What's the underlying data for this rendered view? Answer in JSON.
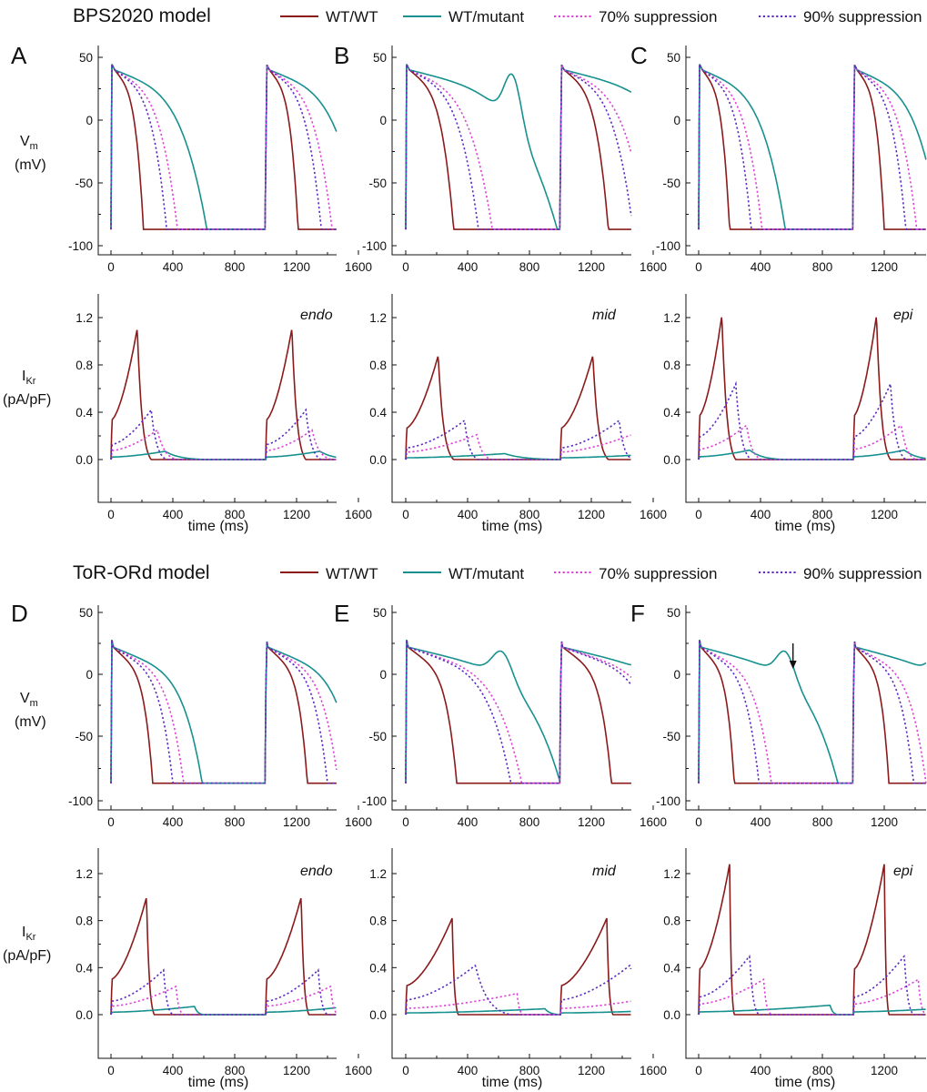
{
  "sections": [
    {
      "title": "BPS2020 model",
      "legend": [
        "WT/WT",
        "WT/mutant",
        "70% suppression",
        "90% suppression"
      ],
      "panels": [
        "A",
        "B",
        "C"
      ],
      "regions": [
        "endo",
        "mid",
        "epi"
      ]
    },
    {
      "title": "ToR-ORd model",
      "legend": [
        "WT/WT",
        "WT/mutant",
        "70% suppression",
        "90% suppression"
      ],
      "panels": [
        "D",
        "E",
        "F"
      ],
      "regions": [
        "endo",
        "mid",
        "epi"
      ]
    }
  ],
  "axes": {
    "vm_label_main": "V",
    "vm_label_sub": "m",
    "vm_unit": "(mV)",
    "ikr_label_main": "I",
    "ikr_label_sub": "Kr",
    "ikr_unit": "(pA/pF)",
    "xlabel": "time (ms)",
    "x_ticks": [
      "0",
      "400",
      "800",
      "1200",
      "1600"
    ],
    "vm_ticks": [
      "50",
      "0",
      "-50",
      "-100"
    ],
    "ikr_ticks": [
      "1.2",
      "0.8",
      "0.4",
      "0.0"
    ]
  },
  "colors": {
    "WT/WT": "#8b1a1a",
    "WT/mutant": "#17918f",
    "70% suppression": "#e040d8",
    "90% suppression": "#5a2ac2"
  },
  "chart_data": [
    {
      "panel": "A",
      "model": "BPS2020",
      "region": "endo",
      "type": "line",
      "xlim": [
        -40,
        1800
      ],
      "vm_ylim": [
        -100,
        55
      ],
      "ikr_ylim": [
        -0.08,
        1.38
      ],
      "apd_ms": [
        210,
        620,
        430,
        360
      ],
      "ikr": [
        {
          "series": "WT/WT",
          "peak": 1.11,
          "t_peak": 170,
          "end": 260
        },
        {
          "series": "WT/mutant",
          "peak": 0.07,
          "t_peak": 350,
          "end": 620
        },
        {
          "series": "70% suppression",
          "peak": 0.25,
          "t_peak": 300,
          "end": 430
        },
        {
          "series": "90% suppression",
          "peak": 0.42,
          "t_peak": 260,
          "end": 360
        }
      ]
    },
    {
      "panel": "B",
      "model": "BPS2020",
      "region": "mid",
      "type": "line",
      "xlim": [
        -40,
        1800
      ],
      "vm_ylim": [
        -100,
        55
      ],
      "ikr_ylim": [
        -0.08,
        1.38
      ],
      "apd_ms": [
        310,
        980,
        560,
        470
      ],
      "mutant_ead": true,
      "ikr": [
        {
          "series": "WT/WT",
          "peak": 0.88,
          "t_peak": 210,
          "end": 310
        },
        {
          "series": "WT/mutant",
          "peak": 0.05,
          "t_peak": 640,
          "end": 1000
        },
        {
          "series": "70% suppression",
          "peak": 0.21,
          "t_peak": 460,
          "end": 560
        },
        {
          "series": "90% suppression",
          "peak": 0.33,
          "t_peak": 380,
          "end": 470
        }
      ]
    },
    {
      "panel": "C",
      "model": "BPS2020",
      "region": "epi",
      "type": "line",
      "xlim": [
        -40,
        1800
      ],
      "vm_ylim": [
        -100,
        55
      ],
      "ikr_ylim": [
        -0.08,
        1.38
      ],
      "apd_ms": [
        200,
        560,
        410,
        340
      ],
      "ikr": [
        {
          "series": "WT/WT",
          "peak": 1.22,
          "t_peak": 150,
          "end": 240
        },
        {
          "series": "WT/mutant",
          "peak": 0.08,
          "t_peak": 330,
          "end": 560
        },
        {
          "series": "70% suppression",
          "peak": 0.29,
          "t_peak": 310,
          "end": 410
        },
        {
          "series": "90% suppression",
          "peak": 0.64,
          "t_peak": 240,
          "end": 340
        }
      ]
    },
    {
      "panel": "D",
      "model": "ToR-ORd",
      "region": "endo",
      "type": "line",
      "xlim": [
        -40,
        1800
      ],
      "vm_ylim": [
        -100,
        50
      ],
      "ikr_ylim": [
        -0.1,
        1.38
      ],
      "apd_ms": [
        270,
        590,
        470,
        400
      ],
      "ikr": [
        {
          "series": "WT/WT",
          "peak": 1.0,
          "t_peak": 230,
          "end": 280
        },
        {
          "series": "WT/mutant",
          "peak": 0.07,
          "t_peak": 540,
          "end": 600
        },
        {
          "series": "70% suppression",
          "peak": 0.24,
          "t_peak": 420,
          "end": 470
        },
        {
          "series": "90% suppression",
          "peak": 0.38,
          "t_peak": 340,
          "end": 400
        }
      ]
    },
    {
      "panel": "E",
      "model": "ToR-ORd",
      "region": "mid",
      "type": "line",
      "xlim": [
        -40,
        1800
      ],
      "vm_ylim": [
        -100,
        50
      ],
      "ikr_ylim": [
        -0.1,
        1.38
      ],
      "apd_ms": [
        330,
        1000,
        750,
        680
      ],
      "mutant_ead": true,
      "ikr": [
        {
          "series": "WT/WT",
          "peak": 0.82,
          "t_peak": 300,
          "end": 340
        },
        {
          "series": "WT/mutant",
          "peak": 0.05,
          "t_peak": 900,
          "end": 1000
        },
        {
          "series": "70% suppression",
          "peak": 0.18,
          "t_peak": 720,
          "end": 760
        },
        {
          "series": "90% suppression",
          "peak": 0.42,
          "t_peak": 450,
          "end": 680
        }
      ]
    },
    {
      "panel": "F",
      "model": "ToR-ORd",
      "region": "epi",
      "type": "line",
      "xlim": [
        -40,
        1800
      ],
      "vm_ylim": [
        -100,
        50
      ],
      "ikr_ylim": [
        -0.1,
        1.38
      ],
      "apd_ms": [
        230,
        900,
        470,
        390
      ],
      "mutant_ead": true,
      "arrow_at_ms": 610,
      "ikr": [
        {
          "series": "WT/WT",
          "peak": 1.28,
          "t_peak": 200,
          "end": 230
        },
        {
          "series": "WT/mutant",
          "peak": 0.08,
          "t_peak": 850,
          "end": 900
        },
        {
          "series": "70% suppression",
          "peak": 0.3,
          "t_peak": 420,
          "end": 470
        },
        {
          "series": "90% suppression",
          "peak": 0.5,
          "t_peak": 330,
          "end": 390
        }
      ]
    }
  ]
}
